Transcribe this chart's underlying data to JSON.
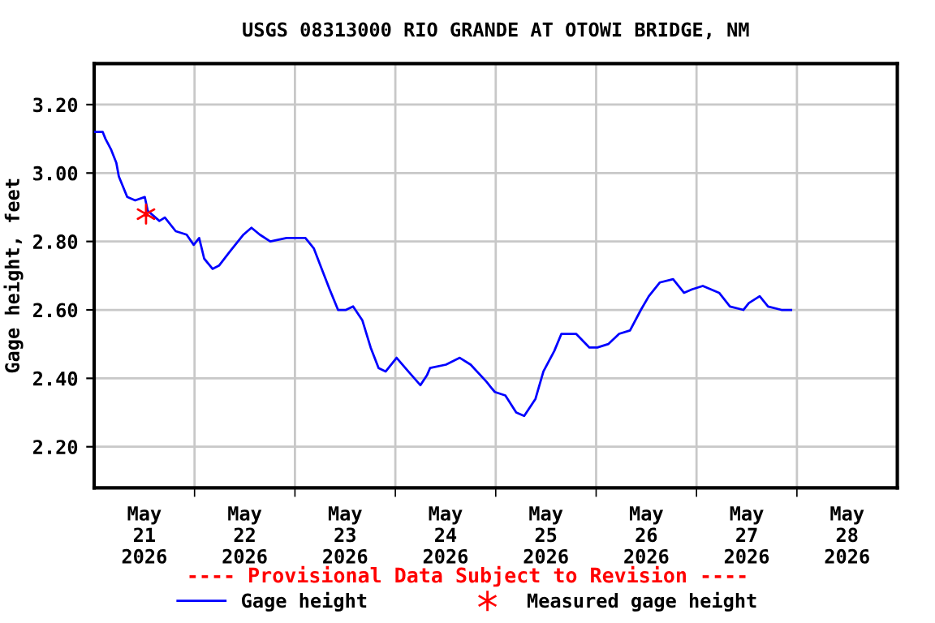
{
  "chart_data": {
    "type": "line",
    "title": "USGS 08313000 RIO GRANDE AT OTOWI BRIDGE, NM",
    "ylabel": "Gage height, feet",
    "series": [
      {
        "name": "Gage height",
        "color": "#0000ff",
        "marker": "none",
        "line_style": "solid",
        "x": [
          "2026-05-21T00:06",
          "2026-05-21T02:03",
          "2026-05-21T02:42",
          "2026-05-21T04:00",
          "2026-05-21T05:18",
          "2026-05-21T05:54",
          "2026-05-21T07:54",
          "2026-05-21T09:48",
          "2026-05-21T12:06",
          "2026-05-21T12:48",
          "2026-05-21T15:36",
          "2026-05-21T16:54",
          "2026-05-21T19:30",
          "2026-05-21T22:06",
          "2026-05-21T23:48",
          "2026-05-22T01:06",
          "2026-05-22T02:18",
          "2026-05-22T04:18",
          "2026-05-22T05:54",
          "2026-05-22T08:24",
          "2026-05-22T11:42",
          "2026-05-22T13:36",
          "2026-05-22T15:36",
          "2026-05-22T18:06",
          "2026-05-22T22:00",
          "2026-05-23T02:30",
          "2026-05-23T04:30",
          "2026-05-23T06:24",
          "2026-05-23T08:18",
          "2026-05-23T10:18",
          "2026-05-23T12:12",
          "2026-05-23T13:54",
          "2026-05-23T16:06",
          "2026-05-23T18:06",
          "2026-05-23T20:00",
          "2026-05-23T21:42",
          "2026-05-24T00:18",
          "2026-05-24T03:06",
          "2026-05-24T06:00",
          "2026-05-24T07:36",
          "2026-05-24T08:18",
          "2026-05-24T12:06",
          "2026-05-24T15:24",
          "2026-05-24T18:00",
          "2026-05-24T21:48",
          "2026-05-24T23:06",
          "2026-05-24T23:48",
          "2026-05-25T02:18",
          "2026-05-25T04:54",
          "2026-05-25T06:48",
          "2026-05-25T09:30",
          "2026-05-25T11:24",
          "2026-05-25T14:00",
          "2026-05-25T15:42",
          "2026-05-25T19:12",
          "2026-05-25T22:24",
          "2026-05-26T00:18",
          "2026-05-26T02:54",
          "2026-05-26T05:30",
          "2026-05-26T08:06",
          "2026-05-26T10:42",
          "2026-05-26T12:36",
          "2026-05-26T15:12",
          "2026-05-26T18:24",
          "2026-05-26T21:00",
          "2026-05-26T22:54",
          "2026-05-27T01:30",
          "2026-05-27T05:24",
          "2026-05-27T08:00",
          "2026-05-27T11:12",
          "2026-05-27T12:30",
          "2026-05-27T15:06",
          "2026-05-27T17:06",
          "2026-05-27T20:18",
          "2026-05-27T22:36"
        ],
        "values": [
          3.12,
          3.12,
          3.1,
          3.07,
          3.03,
          2.99,
          2.93,
          2.92,
          2.93,
          2.89,
          2.86,
          2.87,
          2.83,
          2.82,
          2.79,
          2.81,
          2.75,
          2.72,
          2.73,
          2.77,
          2.82,
          2.84,
          2.82,
          2.8,
          2.81,
          2.81,
          2.78,
          2.72,
          2.66,
          2.6,
          2.6,
          2.61,
          2.57,
          2.49,
          2.43,
          2.42,
          2.46,
          2.42,
          2.38,
          2.41,
          2.43,
          2.44,
          2.46,
          2.44,
          2.39,
          2.37,
          2.36,
          2.35,
          2.3,
          2.29,
          2.34,
          2.42,
          2.48,
          2.53,
          2.53,
          2.49,
          2.49,
          2.5,
          2.53,
          2.54,
          2.6,
          2.64,
          2.68,
          2.69,
          2.65,
          2.66,
          2.67,
          2.65,
          2.61,
          2.6,
          2.62,
          2.64,
          2.61,
          2.6,
          2.6
        ]
      },
      {
        "name": "Measured gage height",
        "type": "scatter",
        "color": "#ff0000",
        "marker": "cross",
        "x": [
          "2026-05-21T12:24"
        ],
        "values": [
          2.88
        ]
      }
    ],
    "xlim": [
      "2026-05-21T00:00",
      "2026-05-29T00:00"
    ],
    "xticks": [
      {
        "value": "2026-05-21T12:00",
        "label": "May\n21\n2026"
      },
      {
        "value": "2026-05-22T12:00",
        "label": "May\n22\n2026"
      },
      {
        "value": "2026-05-23T12:00",
        "label": "May\n23\n2026"
      },
      {
        "value": "2026-05-24T12:00",
        "label": "May\n24\n2026"
      },
      {
        "value": "2026-05-25T12:00",
        "label": "May\n25\n2026"
      },
      {
        "value": "2026-05-26T12:00",
        "label": "May\n26\n2026"
      },
      {
        "value": "2026-05-27T12:00",
        "label": "May\n27\n2026"
      },
      {
        "value": "2026-05-28T12:00",
        "label": "May\n28\n2026"
      },
      {
        "value": "2026-05-22T00:00",
        "label": null
      },
      {
        "value": "2026-05-23T00:00",
        "label": null
      },
      {
        "value": "2026-05-24T00:00",
        "label": null
      },
      {
        "value": "2026-05-25T00:00",
        "label": null
      },
      {
        "value": "2026-05-26T00:00",
        "label": null
      },
      {
        "value": "2026-05-27T00:00",
        "label": null
      },
      {
        "value": "2026-05-28T00:00",
        "label": null
      }
    ],
    "ylim": [
      2.08,
      3.32
    ],
    "yticks": [
      {
        "value": 2.2,
        "label": "2.20"
      },
      {
        "value": 2.4,
        "label": "2.40"
      },
      {
        "value": 2.6,
        "label": "2.60"
      },
      {
        "value": 2.8,
        "label": "2.80"
      },
      {
        "value": 3.0,
        "label": "3.00"
      },
      {
        "value": 3.2,
        "label": "3.20"
      }
    ],
    "grid": true,
    "legend": "bottom",
    "annotations": [
      "---- Provisional Data Subject to Revision ----"
    ]
  }
}
